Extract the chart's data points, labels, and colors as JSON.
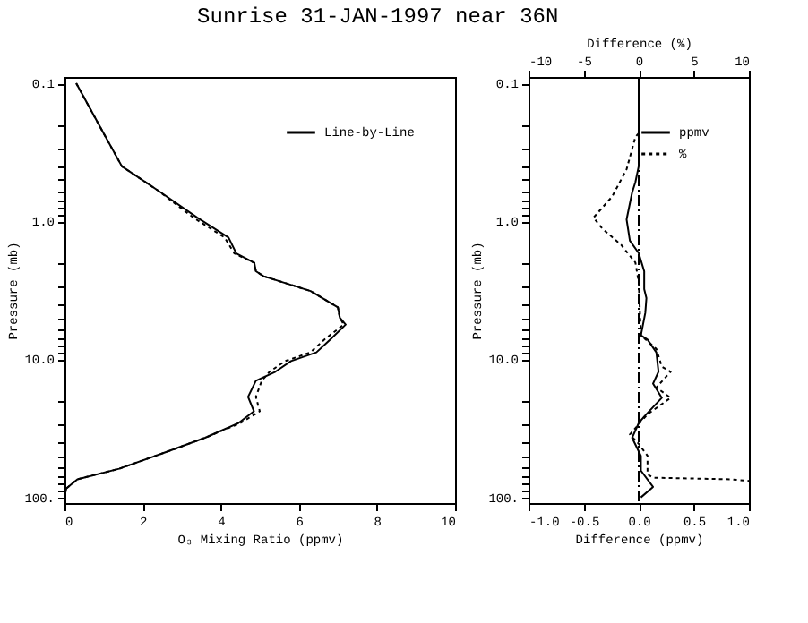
{
  "chart_data": [
    {
      "type": "line",
      "title": "Sunrise 31-JAN-1997 near 36N",
      "xlabel": "O₃ Mixing Ratio (ppmv)",
      "ylabel": "Pressure (mb)",
      "log": "y",
      "legend": "top right",
      "grid": false,
      "xlim": [
        0,
        10
      ],
      "xticks": [
        0,
        2,
        4,
        6,
        8,
        10
      ],
      "ylim": [
        110,
        0.09
      ],
      "yticks": [
        {
          "value": 0.1,
          "label": "0.1"
        },
        {
          "value": 0.2,
          "label": null
        },
        {
          "value": 0.3,
          "label": null
        },
        {
          "value": 0.4,
          "label": null
        },
        {
          "value": 0.5,
          "label": null
        },
        {
          "value": 0.6,
          "label": null
        },
        {
          "value": 0.7,
          "label": null
        },
        {
          "value": 0.8,
          "label": null
        },
        {
          "value": 0.9,
          "label": null
        },
        {
          "value": 1,
          "label": "1.0"
        },
        {
          "value": 2,
          "label": null
        },
        {
          "value": 3,
          "label": null
        },
        {
          "value": 4,
          "label": null
        },
        {
          "value": 5,
          "label": null
        },
        {
          "value": 6,
          "label": null
        },
        {
          "value": 7,
          "label": null
        },
        {
          "value": 8,
          "label": null
        },
        {
          "value": 9,
          "label": null
        },
        {
          "value": 10,
          "label": "10.0"
        },
        {
          "value": 20,
          "label": null
        },
        {
          "value": 30,
          "label": null
        },
        {
          "value": 40,
          "label": null
        },
        {
          "value": 50,
          "label": null
        },
        {
          "value": 60,
          "label": null
        },
        {
          "value": 70,
          "label": null
        },
        {
          "value": 80,
          "label": null
        },
        {
          "value": 90,
          "label": null
        },
        {
          "value": 100,
          "label": "100."
        }
      ],
      "series": [
        {
          "name": "Line-by-Line",
          "color": "#000000",
          "line_style": "solid",
          "x": [
            0.3,
            1.0,
            1.47,
            2.4,
            3.4,
            4.2,
            4.4,
            4.86,
            4.9,
            5.1,
            6.3,
            7.0,
            7.05,
            7.2,
            6.8,
            6.45,
            5.8,
            5.4,
            4.9,
            4.7,
            4.85,
            4.45,
            3.6,
            2.6,
            1.4,
            0.33,
            0.05,
            0.0
          ],
          "values": [
            0.1,
            0.23,
            0.4,
            0.6,
            0.94,
            1.31,
            1.71,
            2.0,
            2.3,
            2.5,
            3.2,
            4.2,
            5.0,
            5.6,
            7.2,
            8.9,
            10.3,
            12.3,
            14.3,
            18.7,
            23.8,
            29,
            37,
            47,
            62,
            74,
            86,
            97
          ]
        },
        {
          "color": "#000000",
          "line_style": "dotted",
          "x": [
            0.3,
            1.0,
            1.47,
            2.4,
            3.3,
            4.1,
            4.35,
            4.86,
            4.9,
            5.1,
            6.3,
            7.0,
            7.05,
            7.15,
            6.65,
            6.3,
            5.65,
            5.25,
            5.05,
            4.9,
            5.0,
            4.5,
            3.6,
            2.6,
            1.4,
            0.33,
            0.05,
            0.0
          ],
          "values": [
            0.1,
            0.23,
            0.4,
            0.6,
            0.94,
            1.31,
            1.71,
            2.0,
            2.3,
            2.5,
            3.2,
            4.2,
            5.0,
            5.6,
            7.2,
            8.9,
            10.3,
            12.3,
            14.3,
            18.7,
            23.8,
            29,
            37,
            47,
            62,
            74,
            86,
            97
          ]
        }
      ]
    },
    {
      "type": "line",
      "xlabel": "Difference (ppmv)",
      "x2label": "Difference (%)",
      "ylabel": "Pressure (mb)",
      "log": "y",
      "legend": "top right",
      "grid": false,
      "xlim": [
        -1,
        1
      ],
      "xticks": [
        {
          "value": -1,
          "label": "-1.0"
        },
        {
          "value": -0.5,
          "label": "-0.5"
        },
        {
          "value": 0,
          "label": "0.0"
        },
        {
          "value": 0.5,
          "label": "0.5"
        },
        {
          "value": 1,
          "label": "1.0"
        }
      ],
      "x2lim": [
        -10,
        10
      ],
      "x2ticks": [
        -10,
        -5,
        0,
        5,
        10
      ],
      "ylim": [
        110,
        0.09
      ],
      "yticks": [
        {
          "value": 0.1,
          "label": "0.1"
        },
        {
          "value": 0.2,
          "label": null
        },
        {
          "value": 0.3,
          "label": null
        },
        {
          "value": 0.4,
          "label": null
        },
        {
          "value": 0.5,
          "label": null
        },
        {
          "value": 0.6,
          "label": null
        },
        {
          "value": 0.7,
          "label": null
        },
        {
          "value": 0.8,
          "label": null
        },
        {
          "value": 0.9,
          "label": null
        },
        {
          "value": 1,
          "label": "1.0"
        },
        {
          "value": 2,
          "label": null
        },
        {
          "value": 3,
          "label": null
        },
        {
          "value": 4,
          "label": null
        },
        {
          "value": 5,
          "label": null
        },
        {
          "value": 6,
          "label": null
        },
        {
          "value": 7,
          "label": null
        },
        {
          "value": 8,
          "label": null
        },
        {
          "value": 9,
          "label": null
        },
        {
          "value": 10,
          "label": "10.0"
        },
        {
          "value": 20,
          "label": null
        },
        {
          "value": 30,
          "label": null
        },
        {
          "value": 40,
          "label": null
        },
        {
          "value": 50,
          "label": null
        },
        {
          "value": 60,
          "label": null
        },
        {
          "value": 70,
          "label": null
        },
        {
          "value": 80,
          "label": null
        },
        {
          "value": 90,
          "label": null
        },
        {
          "value": 100,
          "label": "100."
        }
      ],
      "ref_lines": [
        {
          "axis": "x",
          "value": 0,
          "line_style": "dashed",
          "color": "#000000"
        }
      ],
      "series": [
        {
          "name": "ppmv",
          "color": "#000000",
          "line_style": "solid",
          "x": [
            0,
            0,
            -0.03,
            -0.06,
            -0.11,
            -0.08,
            0,
            0.05,
            0.05,
            0.07,
            0.06,
            0.02,
            0.08,
            0.16,
            0.18,
            0.13,
            0.21,
            0.05,
            0,
            -0.06,
            0.02,
            0.02,
            0.13,
            0.02
          ],
          "values": [
            0.1,
            0.4,
            0.52,
            0.62,
            0.97,
            1.38,
            1.7,
            2.3,
            3.1,
            3.6,
            4.6,
            6.7,
            7.2,
            8.9,
            12.3,
            15,
            19,
            26,
            29,
            37,
            50,
            64,
            84,
            100
          ]
        },
        {
          "name": "%",
          "color": "#000000",
          "line_style": "dotted",
          "axis": "x2",
          "x": [
            0,
            -0.3,
            -1.1,
            -2.4,
            -4.1,
            -3.3,
            -1.6,
            -0.3,
            0,
            0.2,
            1.6,
            2.1,
            2.9,
            1.6,
            2.9,
            0.8,
            -0.8,
            0,
            0.8,
            0.8,
            1.3,
            8.3,
            10
          ],
          "values": [
            0.23,
            0.245,
            0.42,
            0.66,
            0.94,
            1.13,
            1.48,
            1.99,
            2.76,
            6.7,
            8.4,
            11.3,
            12.3,
            16,
            19,
            25,
            35,
            41,
            50,
            68,
            72,
            74,
            76
          ]
        }
      ]
    }
  ]
}
